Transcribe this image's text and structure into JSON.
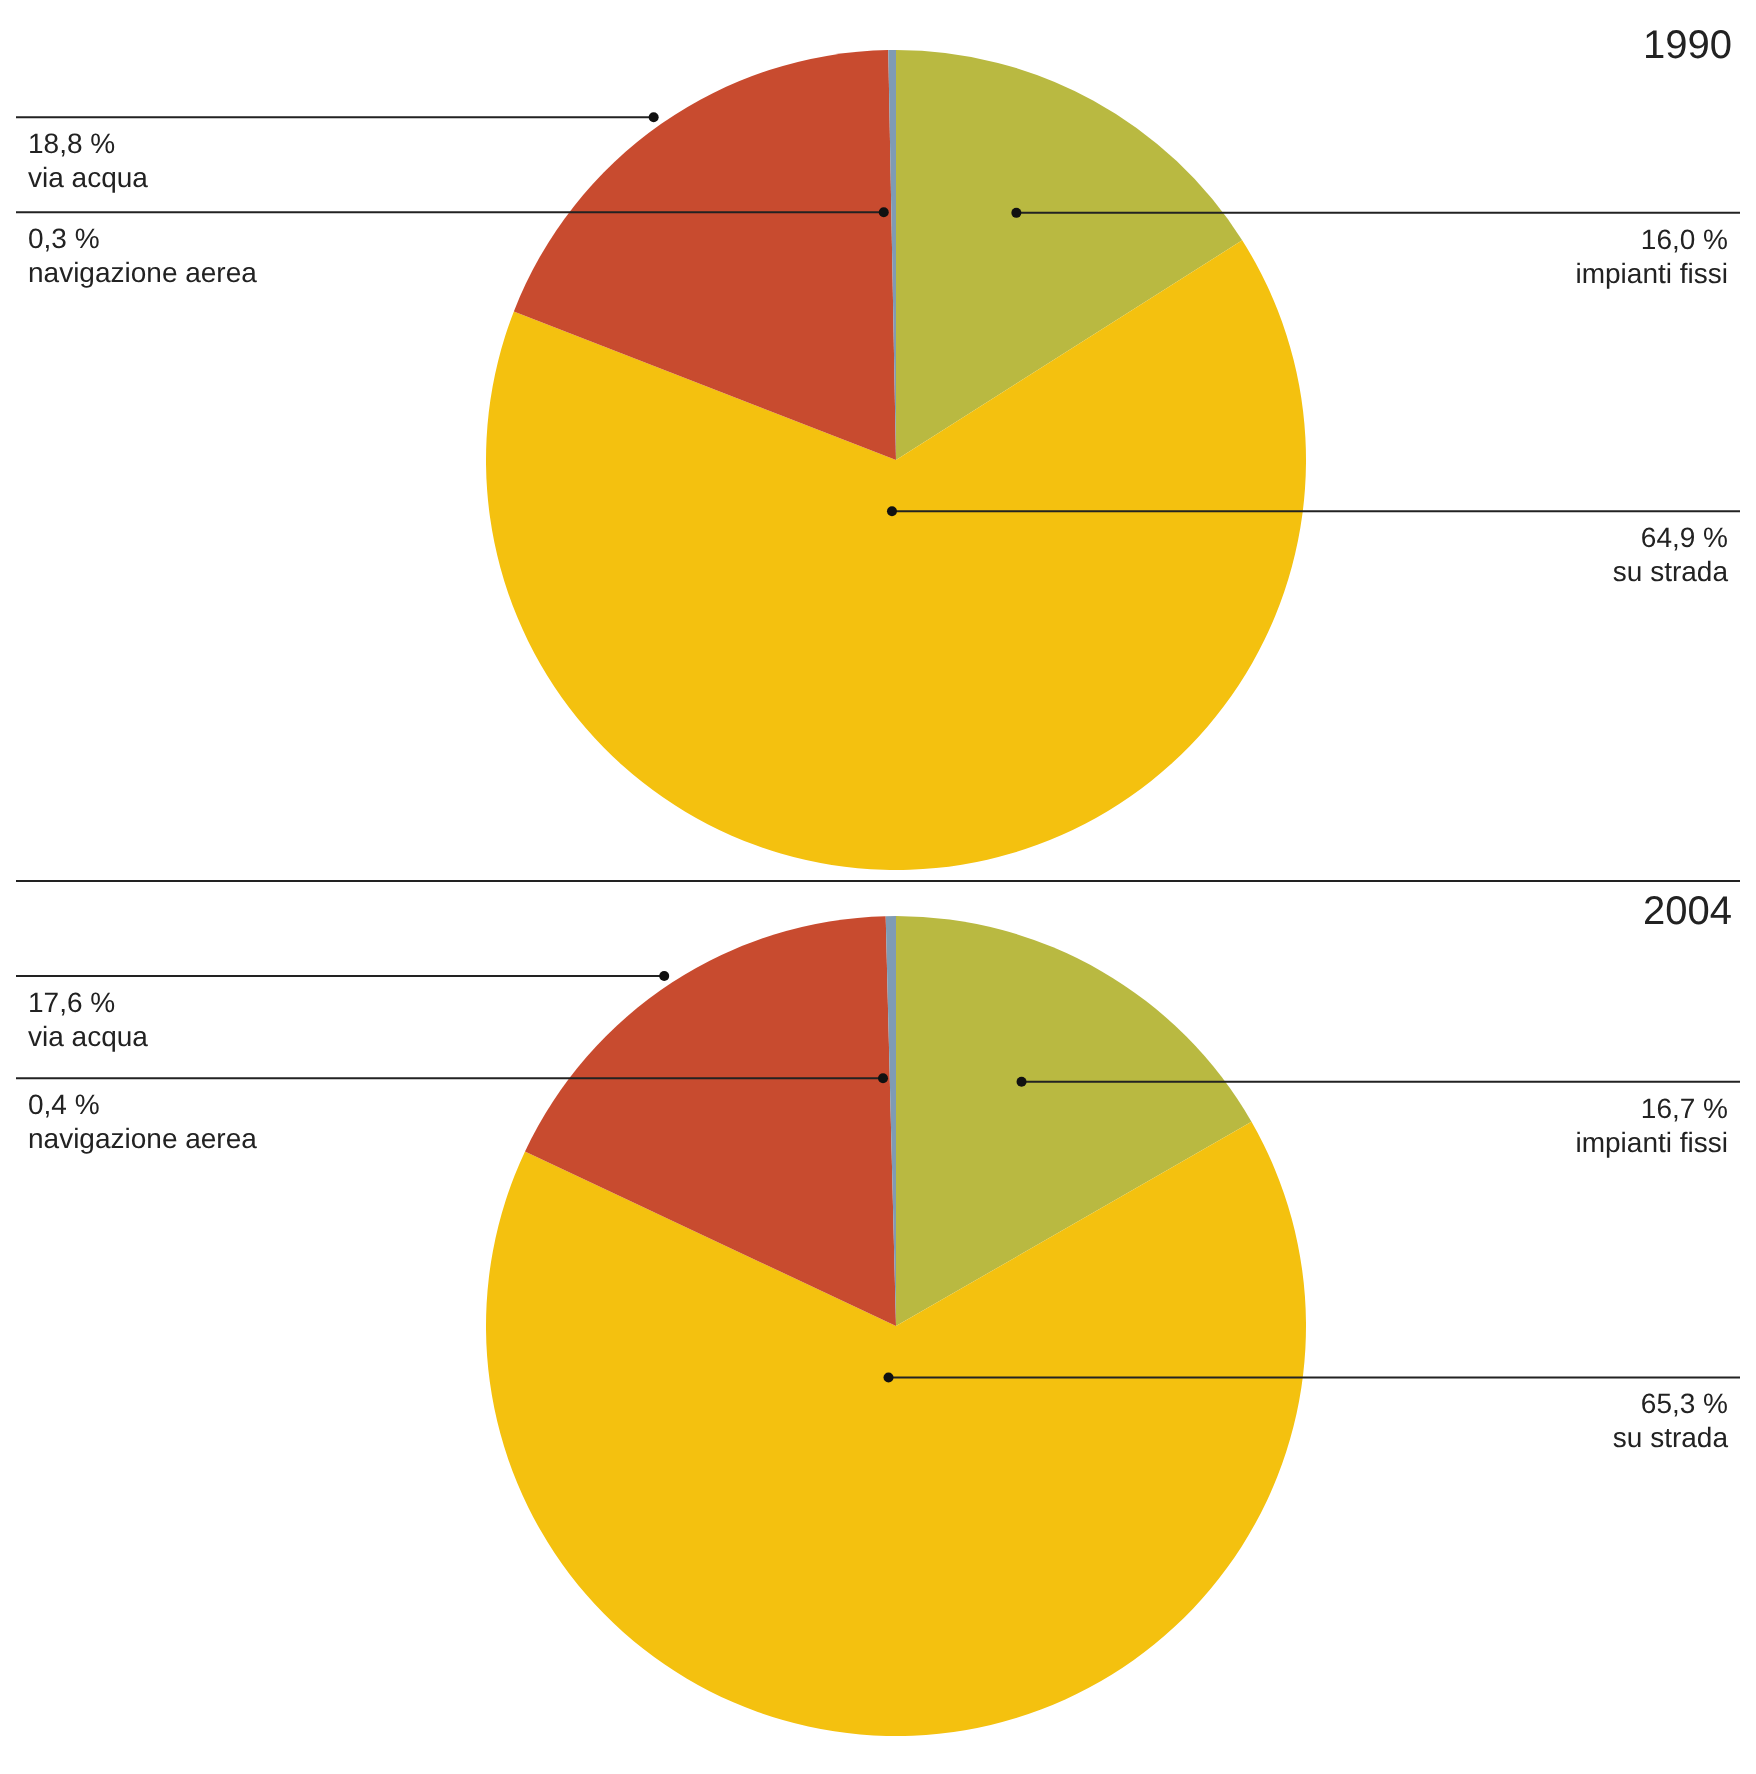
{
  "chart_data": [
    {
      "type": "pie",
      "title": "1990",
      "categories": [
        "impianti fissi",
        "su strada",
        "via acqua",
        "navigazione aerea"
      ],
      "values": [
        16.0,
        64.9,
        18.8,
        0.3
      ],
      "colors": [
        "#b9b941",
        "#f4c10f",
        "#c84b2f",
        "#7f9bb3"
      ],
      "value_labels": [
        "16,0 %",
        "64,9 %",
        "18,8 %",
        "0,3 %"
      ]
    },
    {
      "type": "pie",
      "title": "2004",
      "categories": [
        "impianti fissi",
        "su strada",
        "via acqua",
        "navigazione aerea"
      ],
      "values": [
        16.7,
        65.3,
        17.6,
        0.4
      ],
      "colors": [
        "#b9b941",
        "#f4c10f",
        "#c84b2f",
        "#7f9bb3"
      ],
      "value_labels": [
        "16,7 %",
        "65,3 %",
        "17,6 %",
        "0,4 %"
      ]
    }
  ]
}
